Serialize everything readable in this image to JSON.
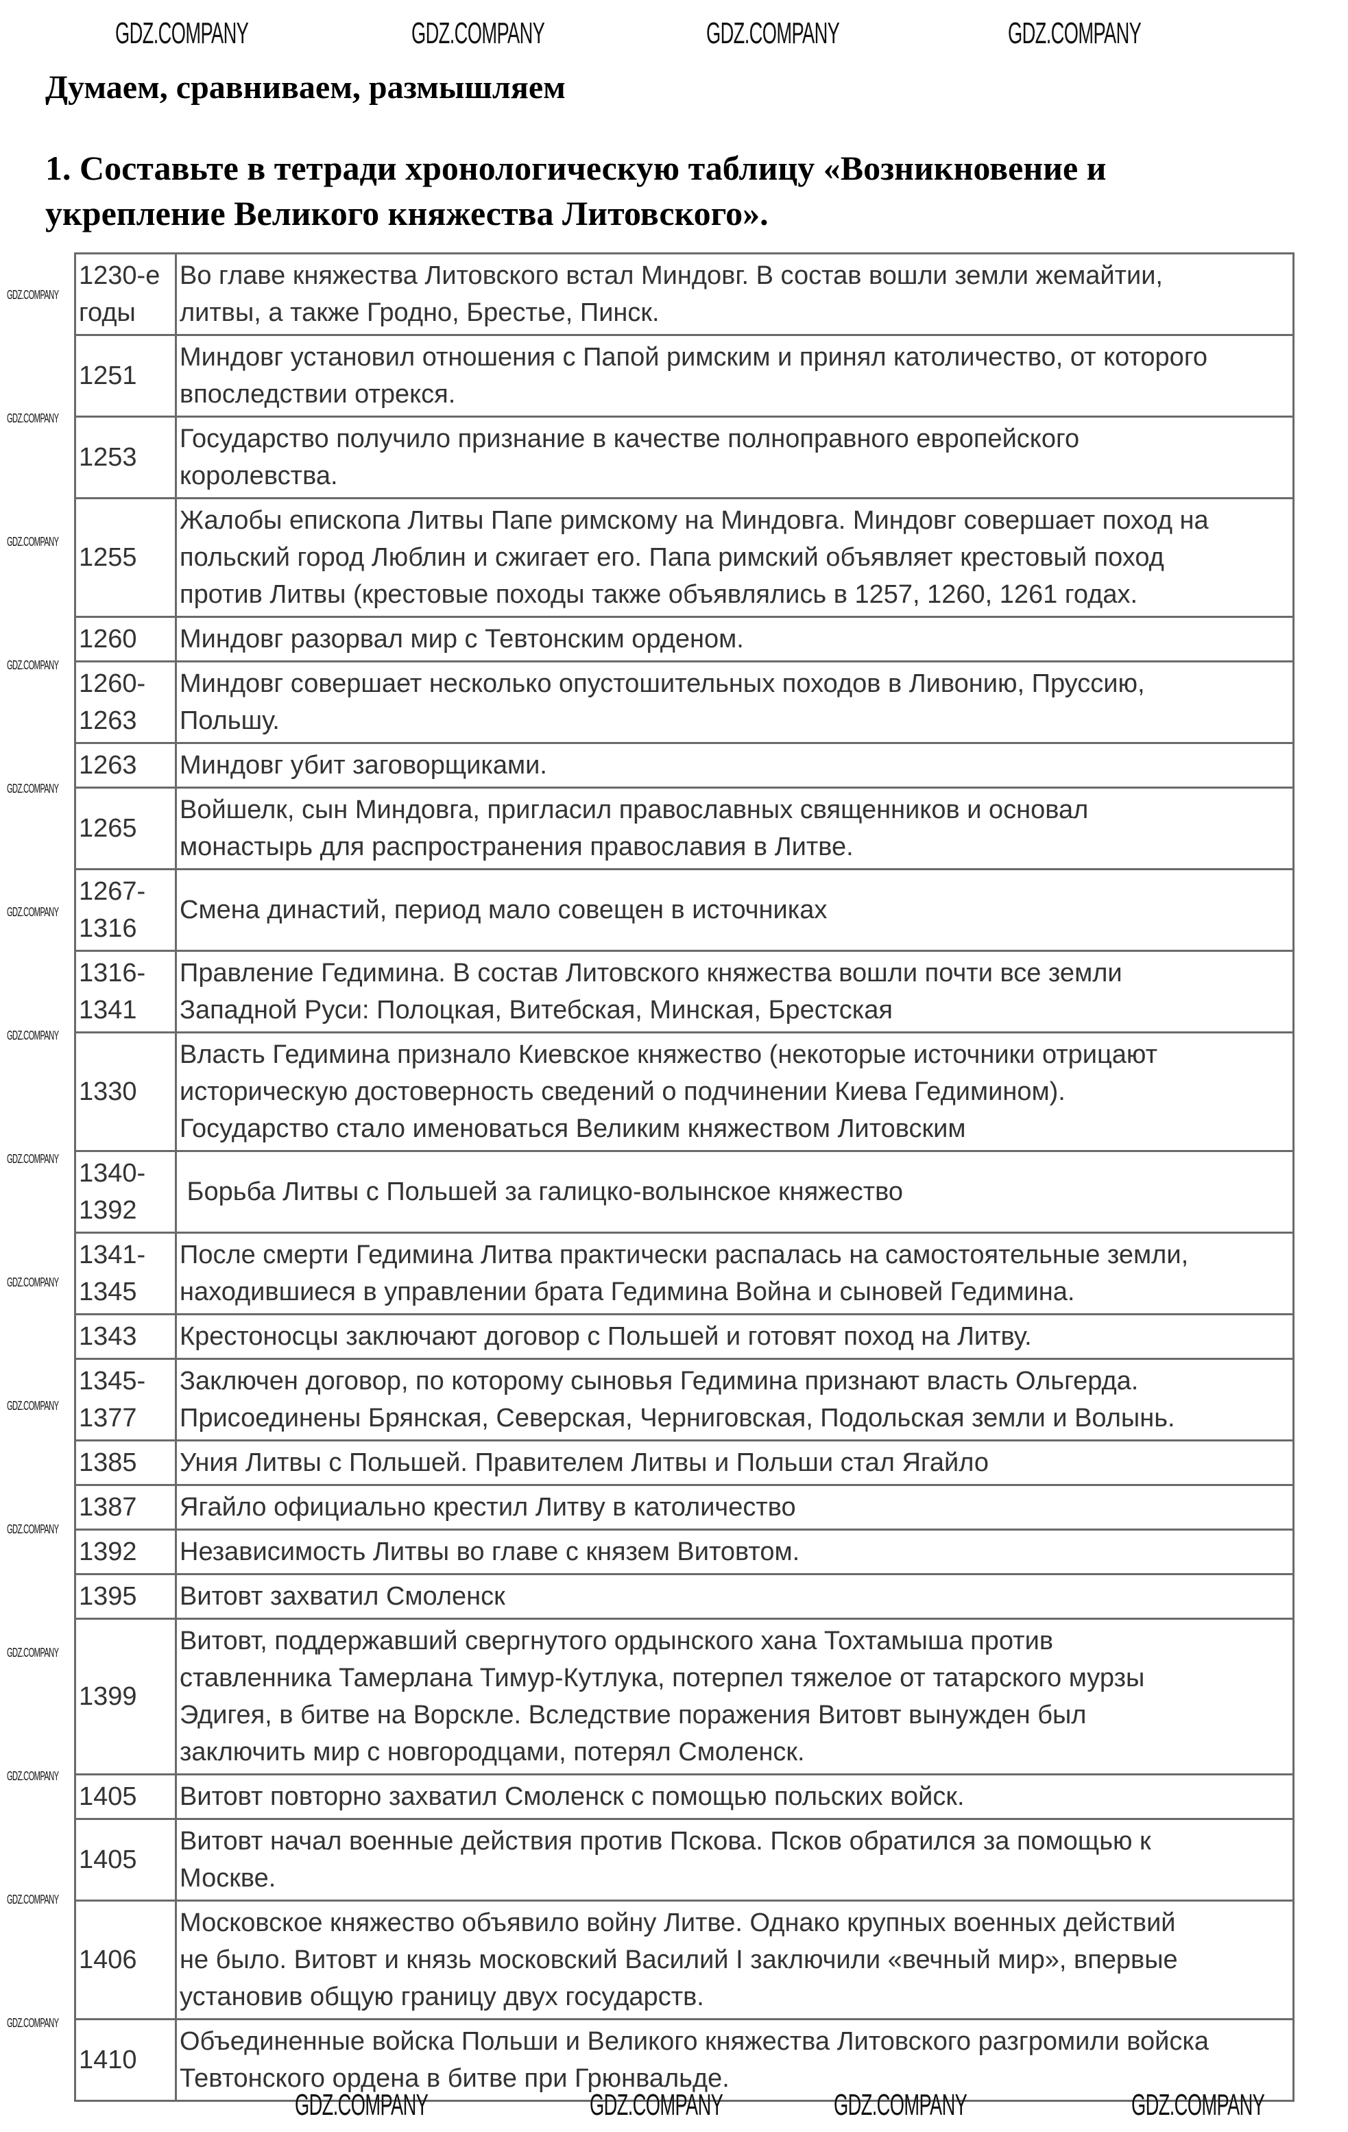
{
  "heading": "Думаем, сравниваем, размышляем",
  "task": "1. Составьте в тетради хронологическую таблицу «Возникновение и\nукрепление Великого княжества Литовского».",
  "watermark": "GDZ.COMPANY",
  "rows": [
    {
      "date": "1230-е\nгоды",
      "event": "Во главе княжества Литовского встал Миндовг. В состав вошли земли жемайтии,\nлитвы, а также Гродно, Брестье, Пинск."
    },
    {
      "date": "1251",
      "event": "Миндовг установил отношения с Папой римским и принял католичество, от которого\nвпоследствии отрекся."
    },
    {
      "date": "1253",
      "event": "Государство получило признание в качестве полноправного европейского\nкоролевства."
    },
    {
      "date": "1255",
      "event": "Жалобы епископа Литвы Папе римскому на Миндовга. Миндовг совершает поход на\nпольский город Люблин и сжигает его. Папа римский объявляет крестовый поход\nпротив Литвы (крестовые походы также объявлялись в 1257, 1260, 1261 годах."
    },
    {
      "date": "1260",
      "event": "Миндовг разорвал мир с Тевтонским орденом."
    },
    {
      "date": "1260-\n1263",
      "event": "Миндовг совершает несколько опустошительных походов в Ливонию, Пруссию,\nПольшу."
    },
    {
      "date": "1263",
      "event": "Миндовг убит заговорщиками."
    },
    {
      "date": "1265",
      "event": "Войшелк, сын Миндовга, пригласил православных священников и основал\nмонастырь для распространения православия в Литве."
    },
    {
      "date": "1267-\n1316",
      "event": "Смена династий, период мало совещен в источниках"
    },
    {
      "date": "1316-\n1341",
      "event": "Правление Гедимина. В состав Литовского княжества вошли почти все земли\nЗападной Руси: Полоцкая, Витебская, Минская, Брестская"
    },
    {
      "date": "1330",
      "event": "Власть Гедимина признало Киевское княжество (некоторые источники отрицают\nисторическую достоверность сведений о подчинении Киева Гедимином).\nГосударство стало именоваться Великим княжеством Литовским"
    },
    {
      "date": "1340-\n1392",
      "event": " Борьба Литвы с Польшей за галицко-волынское княжество"
    },
    {
      "date": "1341-\n1345",
      "event": "После смерти Гедимина Литва практически распалась на самостоятельные земли,\nнаходившиеся в управлении брата Гедимина Война и сыновей Гедимина."
    },
    {
      "date": "1343",
      "event": "Крестоносцы заключают договор с Польшей и готовят поход на Литву."
    },
    {
      "date": "1345-\n1377",
      "event": "Заключен договор, по которому сыновья Гедимина признают власть Ольгерда.\nПрисоединены Брянская, Северская, Черниговская, Подольская земли и Волынь."
    },
    {
      "date": "1385",
      "event": "Уния Литвы с Польшей. Правителем Литвы и Польши стал Ягайло"
    },
    {
      "date": "1387",
      "event": "Ягайло официально крестил Литву в католичество"
    },
    {
      "date": "1392",
      "event": "Независимость Литвы во главе с князем Витовтом."
    },
    {
      "date": "1395",
      "event": "Витовт захватил Смоленск"
    },
    {
      "date": "1399",
      "event": "Витовт, поддержавший свергнутого ордынского хана Тохтамыша против\nставленника Тамерлана Тимур-Кутлука, потерпел тяжелое от татарского мурзы\nЭдигея, в битве на Ворскле. Вследствие поражения Витовт вынужден был\nзаключить мир с новгородцами, потерял Смоленск."
    },
    {
      "date": "1405",
      "event": "Витовт повторно захватил Смоленск с помощью польских войск."
    },
    {
      "date": "1405",
      "event": "Витовт начал военные действия против Пскова. Псков обратился за помощью к\nМоскве."
    },
    {
      "date": "1406",
      "event": "Московское княжество объявило войну Литве. Однако крупных военных действий\nне было. Витовт и князь московский Василий I заключили «вечный мир», впервые\nустановив общую границу двух государств."
    },
    {
      "date": "1410",
      "event": "Объединенные войска Польши и Великого княжества Литовского разгромили войска\nТевтонского ордена в битве при Грюнвальде."
    }
  ]
}
